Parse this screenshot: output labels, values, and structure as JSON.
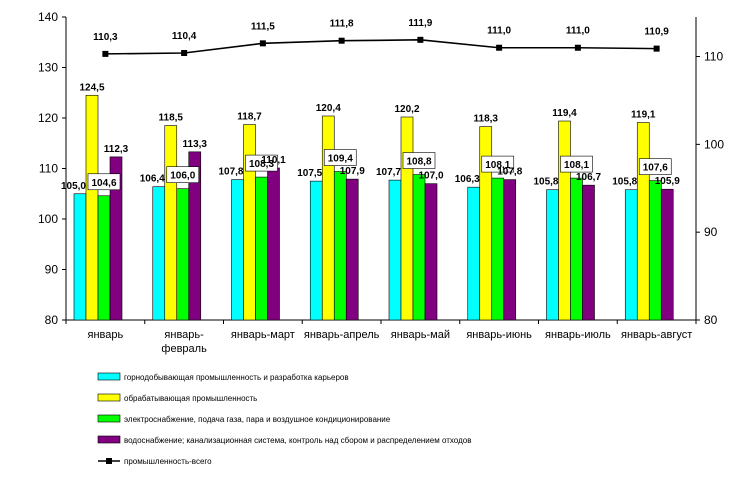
{
  "chart_data": {
    "type": "bar",
    "categories": [
      "январь",
      "январь-\nфевраль",
      "январь-март",
      "январь-апрель",
      "январь-май",
      "январь-июнь",
      "январь-июль",
      "январь-август"
    ],
    "series": [
      {
        "name": "горнодобывающая промышленность и разработка карьеров",
        "type": "bar",
        "axis": "left",
        "color": "#00ffff",
        "values": [
          105.0,
          106.4,
          107.8,
          107.5,
          107.7,
          106.3,
          105.8,
          105.8
        ],
        "labels": [
          "105,0",
          "106,4",
          "107,8",
          "107,5",
          "107,7",
          "106,3",
          "105,8",
          "105,8"
        ]
      },
      {
        "name": "обрабатывающая промышленность",
        "type": "bar",
        "axis": "left",
        "color": "#ffff00",
        "values": [
          124.5,
          118.5,
          118.7,
          120.4,
          120.2,
          118.3,
          119.4,
          119.1
        ],
        "labels": [
          "124,5",
          "118,5",
          "118,7",
          "120,4",
          "120,2",
          "118,3",
          "119,4",
          "119,1"
        ]
      },
      {
        "name": "электроснабжение, подача газа, пара и воздушное кондиционирование",
        "type": "bar",
        "axis": "left",
        "color": "#00ff00",
        "values": [
          104.6,
          106.0,
          108.3,
          109.4,
          108.8,
          108.1,
          108.1,
          107.6
        ],
        "labels": [
          "104,6",
          "106,0",
          "108,3",
          "109,4",
          "108,8",
          "108,1",
          "108,1",
          "107,6"
        ]
      },
      {
        "name": "водоснабжение; канализационная система, контроль над сбором и распределением отходов",
        "type": "bar",
        "axis": "left",
        "color": "#800080",
        "values": [
          112.3,
          113.3,
          110.1,
          107.9,
          107.0,
          107.8,
          106.7,
          105.9
        ],
        "labels": [
          "112,3",
          "113,3",
          "110,1",
          "107,9",
          "107,0",
          "107,8",
          "106,7",
          "105,9"
        ]
      },
      {
        "name": "промышленность-всего",
        "type": "line",
        "axis": "right",
        "color": "#000000",
        "values": [
          110.3,
          110.4,
          111.5,
          111.8,
          111.9,
          111.0,
          111.0,
          110.9
        ],
        "labels": [
          "110,3",
          "110,4",
          "111,5",
          "111,8",
          "111,9",
          "111,0",
          "111,0",
          "110,9"
        ]
      }
    ],
    "y_left": {
      "min": 80,
      "max": 140,
      "ticks": [
        80,
        90,
        100,
        110,
        120,
        130,
        140
      ]
    },
    "y_right": {
      "min": 80,
      "max": 114.5,
      "ticks": [
        80,
        90,
        100,
        110
      ]
    },
    "grid": false,
    "legend": "bottom"
  }
}
